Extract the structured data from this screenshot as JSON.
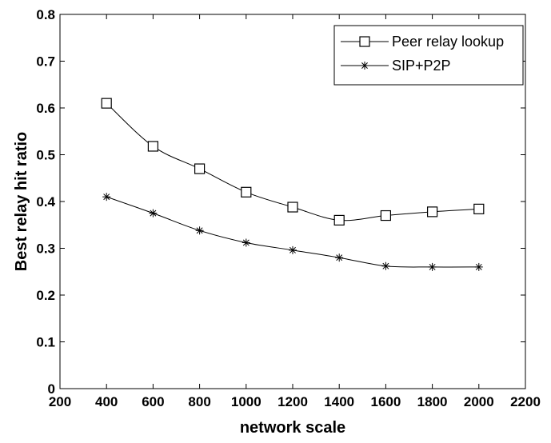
{
  "chart_data": {
    "type": "line",
    "title": "",
    "xlabel": "network scale",
    "ylabel": "Best relay hit ratio",
    "xlim": [
      200,
      2200
    ],
    "ylim": [
      0,
      0.8
    ],
    "xticks": [
      200,
      400,
      600,
      800,
      1000,
      1200,
      1400,
      1600,
      1800,
      2000,
      2200
    ],
    "yticks": [
      0,
      0.1,
      0.2,
      0.3,
      0.4,
      0.5,
      0.6,
      0.7,
      0.8
    ],
    "x": [
      400,
      600,
      800,
      1000,
      1200,
      1400,
      1600,
      1800,
      2000
    ],
    "grid": false,
    "legend_position": "top-right",
    "series": [
      {
        "name": "Peer relay lookup",
        "marker": "square",
        "color": "#000000",
        "values": [
          0.61,
          0.518,
          0.47,
          0.42,
          0.388,
          0.36,
          0.37,
          0.378,
          0.384
        ]
      },
      {
        "name": "SIP+P2P",
        "marker": "star",
        "color": "#000000",
        "values": [
          0.41,
          0.375,
          0.338,
          0.312,
          0.296,
          0.28,
          0.262,
          0.26,
          0.26
        ]
      }
    ]
  }
}
